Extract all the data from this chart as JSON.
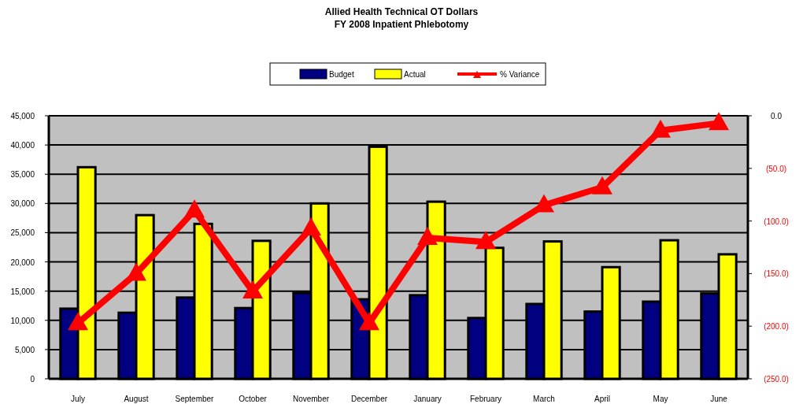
{
  "chart_data": {
    "type": "bar",
    "title": "Allied Health Technical OT Dollars",
    "subtitle": "FY 2008 Inpatient Phlebotomy",
    "categories": [
      "July",
      "August",
      "September",
      "October",
      "November",
      "December",
      "January",
      "February",
      "March",
      "April",
      "May",
      "June"
    ],
    "series": [
      {
        "name": "Budget",
        "color": "#000080",
        "values": [
          12000,
          11300,
          13900,
          12100,
          14700,
          13600,
          14300,
          10400,
          12800,
          11500,
          13200,
          14600
        ]
      },
      {
        "name": "Actual",
        "color": "#ffff00",
        "values": [
          36200,
          28000,
          26500,
          23600,
          30000,
          39700,
          30300,
          22400,
          23500,
          19100,
          23700,
          21300
        ]
      },
      {
        "name": "% Variance",
        "type": "line",
        "axis": "y2",
        "color": "#ff0000",
        "marker": "triangle",
        "values": [
          -197,
          -150,
          -90,
          -167,
          -107,
          -197,
          -116,
          -120,
          -85,
          -68,
          -14,
          -7
        ]
      }
    ],
    "ylim": [
      0,
      45000
    ],
    "yticks": [
      {
        "value": 0,
        "label": "0"
      },
      {
        "value": 5000,
        "label": "5,000"
      },
      {
        "value": 10000,
        "label": "10,000"
      },
      {
        "value": 15000,
        "label": "15,000"
      },
      {
        "value": 20000,
        "label": "20,000"
      },
      {
        "value": 25000,
        "label": "25,000"
      },
      {
        "value": 30000,
        "label": "30,000"
      },
      {
        "value": 35000,
        "label": "35,000"
      },
      {
        "value": 40000,
        "label": "40,000"
      },
      {
        "value": 45000,
        "label": "45,000"
      }
    ],
    "y2lim": [
      -250,
      0
    ],
    "y2ticks": [
      {
        "value": 0,
        "label": "0.0"
      },
      {
        "value": -50,
        "label": "(50.0)"
      },
      {
        "value": -100,
        "label": "(100.0)"
      },
      {
        "value": -150,
        "label": "(150.0)"
      },
      {
        "value": -200,
        "label": "(200.0)"
      },
      {
        "value": -250,
        "label": "(250.0)"
      }
    ],
    "grid": "y",
    "legend": "top"
  }
}
